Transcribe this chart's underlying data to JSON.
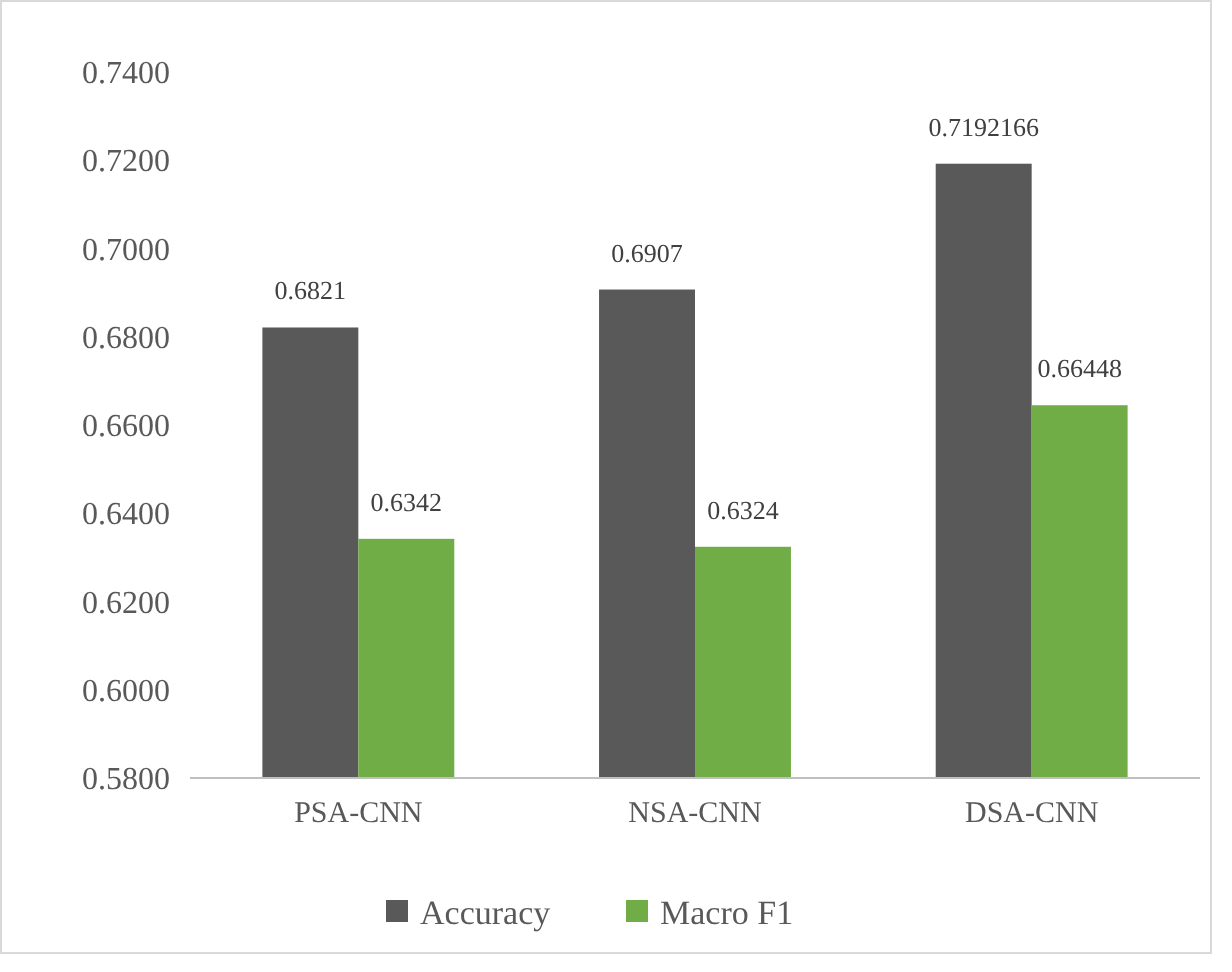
{
  "chart_data": {
    "type": "bar",
    "categories": [
      "PSA-CNN",
      "NSA-CNN",
      "DSA-CNN"
    ],
    "series": [
      {
        "name": "Accuracy",
        "color": "#595959",
        "values": [
          0.6821,
          0.6907,
          0.7192166
        ]
      },
      {
        "name": "Macro F1",
        "color": "#70ad47",
        "values": [
          0.6342,
          0.6324,
          0.66448
        ]
      }
    ],
    "ylim": [
      0.58,
      0.74
    ],
    "yticks": [
      {
        "value": 0.58,
        "label": "0.5800"
      },
      {
        "value": 0.6,
        "label": "0.6000"
      },
      {
        "value": 0.62,
        "label": "0.6200"
      },
      {
        "value": 0.64,
        "label": "0.6400"
      },
      {
        "value": 0.66,
        "label": "0.6600"
      },
      {
        "value": 0.68,
        "label": "0.6800"
      },
      {
        "value": 0.7,
        "label": "0.7000"
      },
      {
        "value": 0.72,
        "label": "0.7200"
      },
      {
        "value": 0.74,
        "label": "0.7400"
      }
    ],
    "data_labels": true,
    "grid": false,
    "legend": "bottom"
  }
}
